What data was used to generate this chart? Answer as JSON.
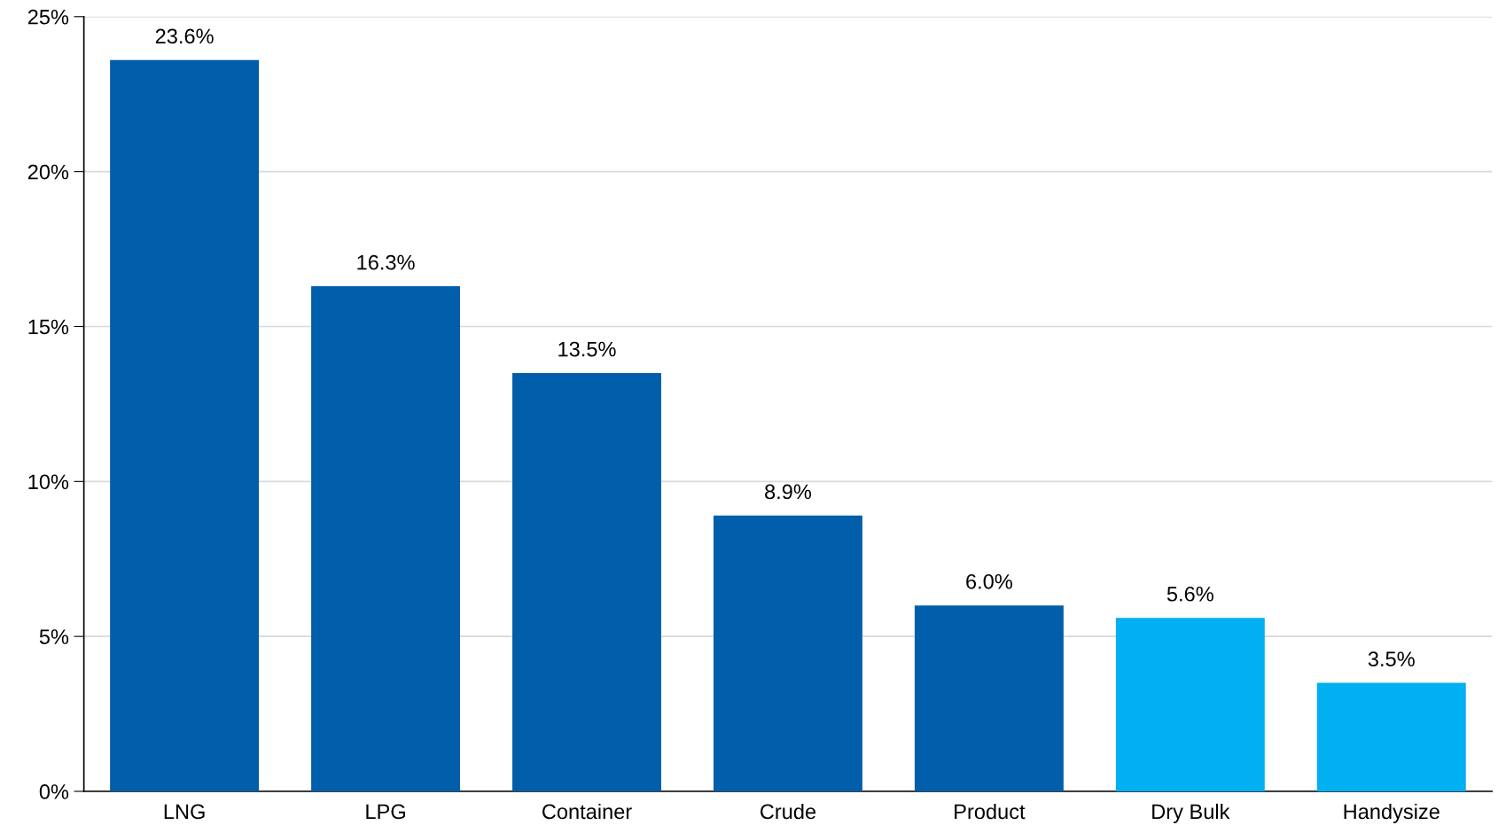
{
  "chart_data": {
    "type": "bar",
    "categories": [
      "LNG",
      "LPG",
      "Container",
      "Crude",
      "Product",
      "Dry Bulk",
      "Handysize"
    ],
    "values": [
      23.6,
      16.3,
      13.5,
      8.9,
      6.0,
      5.6,
      3.5
    ],
    "colors": [
      "#005eaa",
      "#005eaa",
      "#005eaa",
      "#005eaa",
      "#005eaa",
      "#00b0f0",
      "#00b0f0"
    ],
    "value_labels": [
      "23.6%",
      "16.3%",
      "13.5%",
      "8.9%",
      "6.0%",
      "5.6%",
      "3.5%"
    ],
    "ylim": [
      0,
      25
    ],
    "yticks": [
      {
        "value": 0,
        "label": "0%"
      },
      {
        "value": 5,
        "label": "5%"
      },
      {
        "value": 10,
        "label": "10%"
      },
      {
        "value": 15,
        "label": "15%"
      },
      {
        "value": 20,
        "label": "20%"
      },
      {
        "value": 25,
        "label": "25%"
      }
    ],
    "grid": "y"
  }
}
